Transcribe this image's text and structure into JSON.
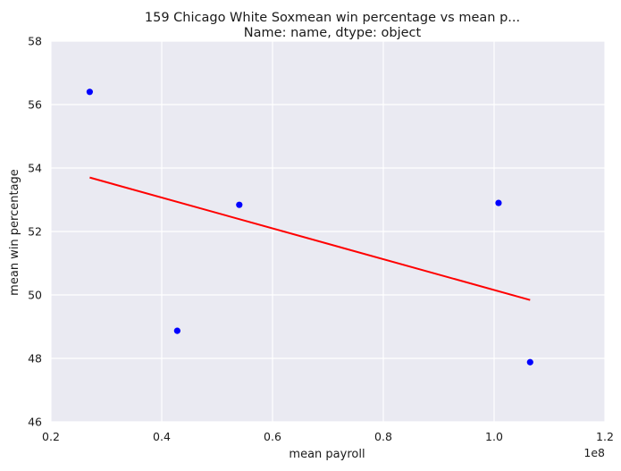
{
  "chart_data": {
    "type": "scatter",
    "title_line1": "159    Chicago White Soxmean win percentage vs mean p...",
    "title_line2": "Name: name, dtype: object",
    "xlabel": "mean payroll",
    "ylabel": "mean win percentage",
    "x_offset_label": "1e8",
    "xlim": [
      0.2,
      1.2
    ],
    "ylim": [
      46,
      58
    ],
    "x_ticks": [
      0.2,
      0.4,
      0.6,
      0.8,
      1.0,
      1.2
    ],
    "x_tick_labels": [
      "0.2",
      "0.4",
      "0.6",
      "0.8",
      "1.0",
      "1.2"
    ],
    "y_ticks": [
      46,
      48,
      50,
      52,
      54,
      56,
      58
    ],
    "y_tick_labels": [
      "46",
      "48",
      "50",
      "52",
      "54",
      "56",
      "58"
    ],
    "grid": true,
    "points": [
      {
        "x": 0.27,
        "y": 56.4
      },
      {
        "x": 0.428,
        "y": 48.87
      },
      {
        "x": 0.54,
        "y": 52.84
      },
      {
        "x": 1.008,
        "y": 52.9
      },
      {
        "x": 1.065,
        "y": 47.88
      }
    ],
    "fit_line": {
      "x": [
        0.27,
        1.065
      ],
      "y": [
        53.7,
        49.84
      ]
    },
    "colors": {
      "background": "#eaeaf2",
      "grid": "#ffffff",
      "points": "#0000ff",
      "line": "#ff0000"
    }
  }
}
